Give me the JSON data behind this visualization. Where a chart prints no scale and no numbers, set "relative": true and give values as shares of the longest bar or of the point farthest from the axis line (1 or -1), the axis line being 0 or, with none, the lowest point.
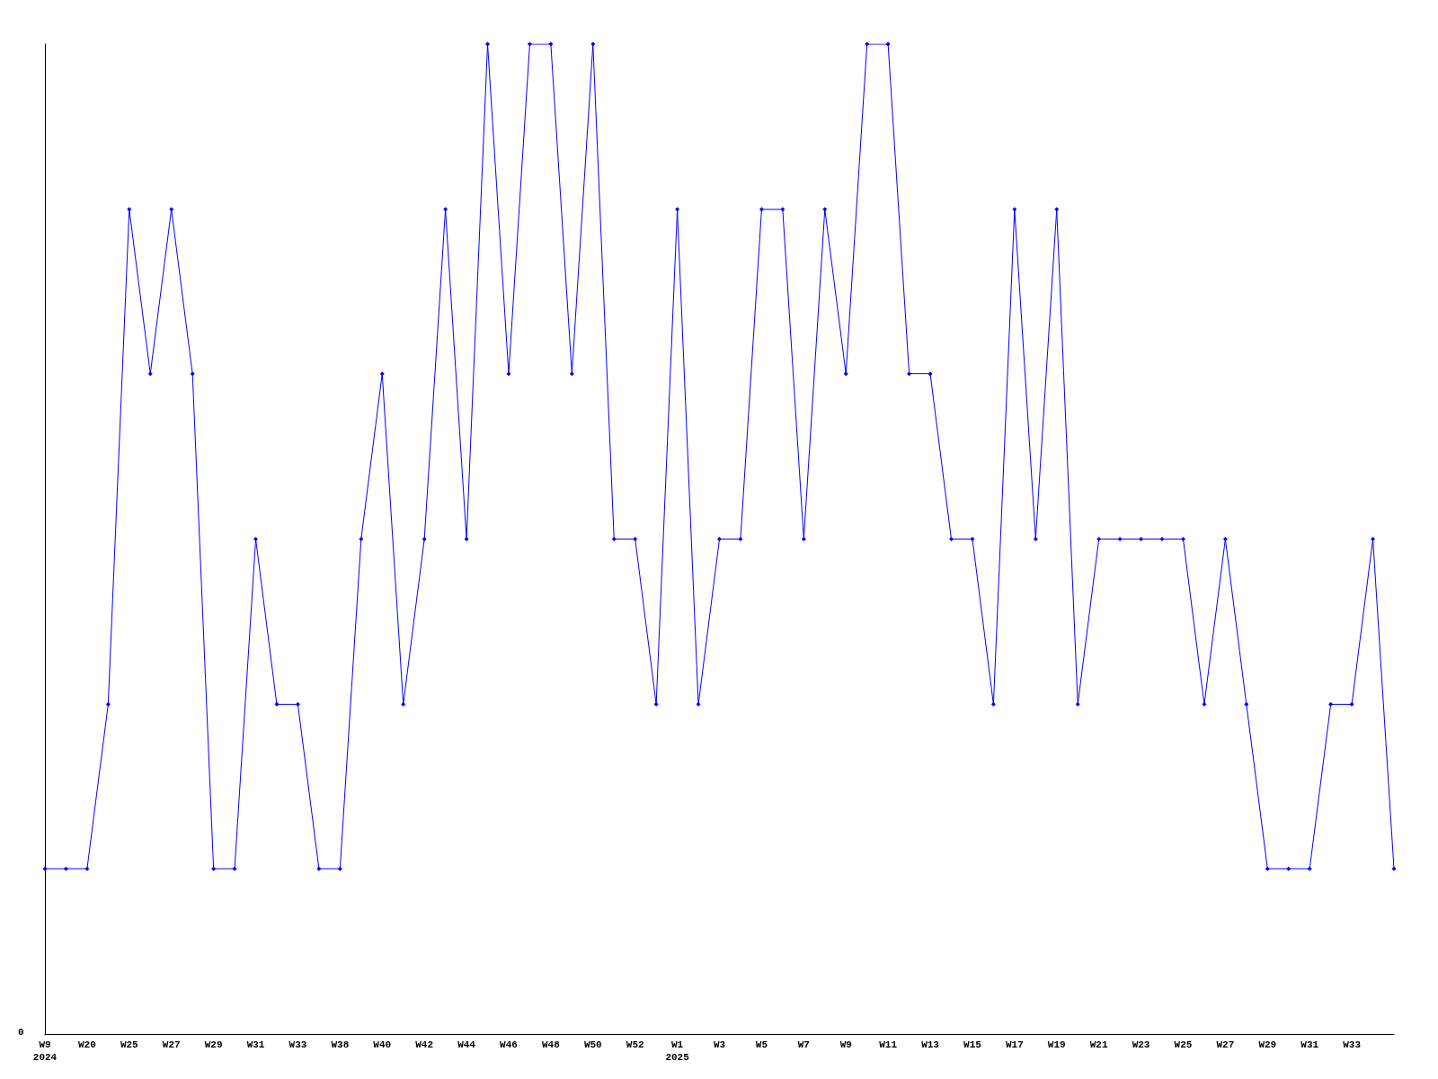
{
  "chart_data": {
    "type": "line",
    "relative": true,
    "color": "#0000ff",
    "marker": "diamond",
    "line_style": "solid",
    "grid": false,
    "annotations": [
      "0"
    ],
    "categories": [
      "W9\n2024",
      null,
      "W20",
      null,
      "W25",
      null,
      "W27",
      null,
      "W29",
      null,
      "W31",
      null,
      "W33",
      null,
      "W38",
      null,
      "W40",
      null,
      "W42",
      null,
      "W44",
      null,
      "W46",
      null,
      "W48",
      null,
      "W50",
      null,
      "W52",
      null,
      "W1\n2025",
      null,
      "W3",
      null,
      "W5",
      null,
      "W7",
      null,
      "W9",
      null,
      "W11",
      null,
      "W13",
      null,
      "W15",
      null,
      "W17",
      null,
      "W19",
      null,
      "W21",
      null,
      "W23",
      null,
      "W25",
      null,
      "W27",
      null,
      "W29",
      null,
      "W31",
      null,
      "W33",
      null,
      null
    ],
    "values": [
      0.167,
      0.167,
      0.167,
      0.333,
      0.833,
      0.667,
      0.833,
      0.667,
      0.167,
      0.167,
      0.5,
      0.333,
      0.333,
      0.167,
      0.167,
      0.5,
      0.667,
      0.333,
      0.5,
      0.833,
      0.5,
      1,
      0.667,
      1,
      1,
      0.667,
      1,
      0.5,
      0.5,
      0.333,
      0.833,
      0.333,
      0.5,
      0.5,
      0.833,
      0.833,
      0.5,
      0.833,
      0.667,
      1,
      1,
      0.667,
      0.667,
      0.5,
      0.5,
      0.333,
      0.833,
      0.5,
      0.833,
      0.333,
      0.5,
      0.5,
      0.5,
      0.5,
      0.5,
      0.333,
      0.5,
      0.333,
      0.167,
      0.167,
      0.167,
      0.333,
      0.333,
      0.5,
      0.167
    ]
  }
}
